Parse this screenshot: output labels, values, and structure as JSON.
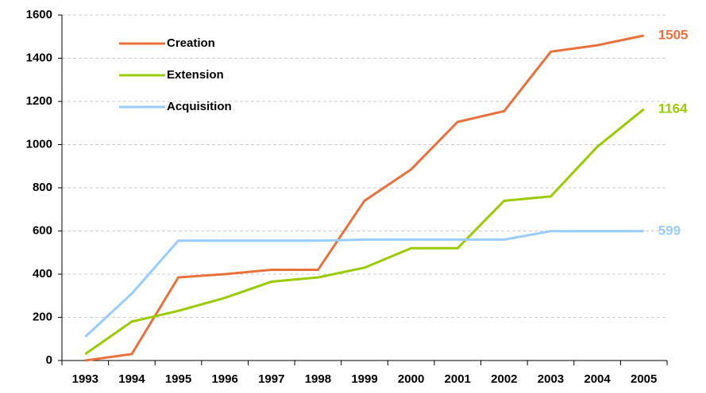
{
  "chart_data": {
    "type": "line",
    "categories": [
      "1993",
      "1994",
      "1995",
      "1996",
      "1997",
      "1998",
      "1999",
      "2000",
      "2001",
      "2002",
      "2003",
      "2004",
      "2005"
    ],
    "series": [
      {
        "name": "Creation",
        "color": "#e8713c",
        "values": [
          0,
          30,
          385,
          400,
          420,
          420,
          740,
          885,
          1105,
          1155,
          1430,
          1460,
          1505
        ]
      },
      {
        "name": "Extension",
        "color": "#99cc00",
        "values": [
          30,
          180,
          230,
          290,
          365,
          385,
          430,
          520,
          520,
          740,
          760,
          990,
          1164
        ]
      },
      {
        "name": "Acquisition",
        "color": "#99ccff",
        "values": [
          110,
          310,
          555,
          555,
          555,
          555,
          560,
          560,
          560,
          560,
          599,
          599,
          599
        ]
      }
    ],
    "ylim": [
      0,
      1600
    ],
    "yticks": [
      0,
      200,
      400,
      600,
      800,
      1000,
      1200,
      1400,
      1600
    ],
    "grid": true,
    "legend": "upper left"
  }
}
